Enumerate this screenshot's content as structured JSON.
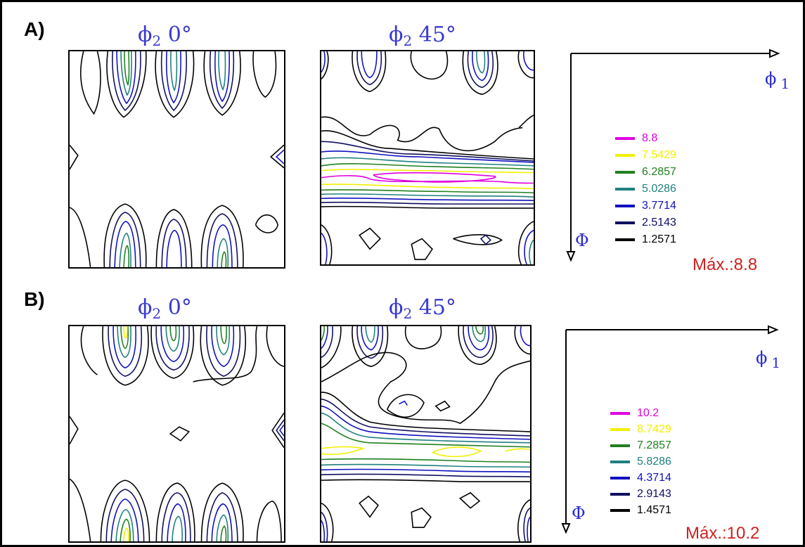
{
  "panels": [
    {
      "id": "A",
      "label": "A)",
      "plots": [
        {
          "title_symbol": "ϕ",
          "title_sub": "2",
          "title_angle": "0°"
        },
        {
          "title_symbol": "ϕ",
          "title_sub": "2",
          "title_angle": "45°"
        }
      ],
      "axis_x_label": "ϕ",
      "axis_x_sub": "1",
      "axis_y_label": "Φ",
      "legend": [
        {
          "value": "8.8",
          "color": "#e000e0"
        },
        {
          "value": "7.5429",
          "color": "#f0f000"
        },
        {
          "value": "6.2857",
          "color": "#208020"
        },
        {
          "value": "5.0286",
          "color": "#208080"
        },
        {
          "value": "3.7714",
          "color": "#1010c0"
        },
        {
          "value": "2.5143",
          "color": "#101060"
        },
        {
          "value": "1.2571",
          "color": "#000000"
        }
      ],
      "max_text": "Máx.:8.8"
    },
    {
      "id": "B",
      "label": "B)",
      "plots": [
        {
          "title_symbol": "ϕ",
          "title_sub": "2",
          "title_angle": "0°"
        },
        {
          "title_symbol": "ϕ",
          "title_sub": "2",
          "title_angle": "45°"
        }
      ],
      "axis_x_label": "ϕ",
      "axis_x_sub": "1",
      "axis_y_label": "Φ",
      "legend": [
        {
          "value": "10.2",
          "color": "#e000e0"
        },
        {
          "value": "8.7429",
          "color": "#f0f000"
        },
        {
          "value": "7.2857",
          "color": "#208020"
        },
        {
          "value": "5.8286",
          "color": "#208080"
        },
        {
          "value": "4.3714",
          "color": "#1010c0"
        },
        {
          "value": "2.9143",
          "color": "#101060"
        },
        {
          "value": "1.4571",
          "color": "#000000"
        }
      ],
      "max_text": "Máx.:10.2"
    }
  ]
}
